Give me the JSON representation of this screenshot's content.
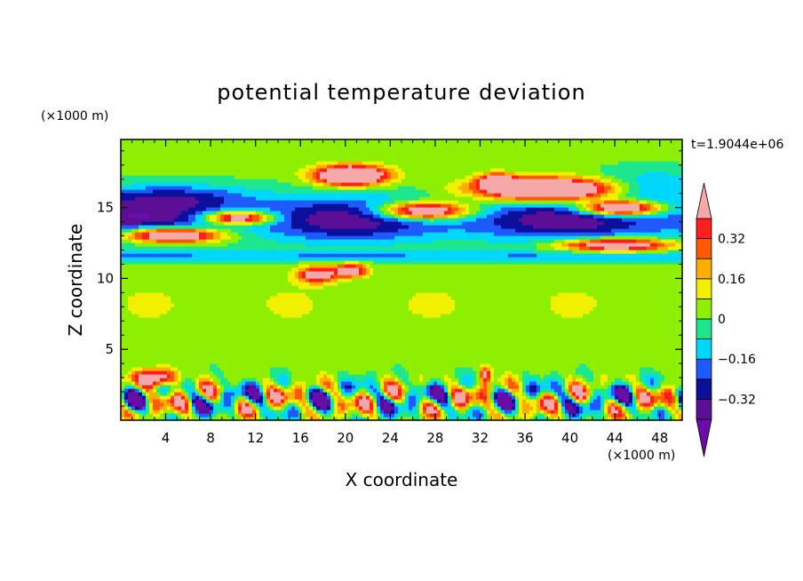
{
  "chart_data": {
    "type": "heatmap",
    "title": "potential temperature deviation",
    "time_label": "t=1.9044e+06",
    "xlabel": "X coordinate",
    "ylabel": "Z coordinate",
    "x_unit": "(×1000 m)",
    "y_unit": "(×1000 m)",
    "xlim": [
      0,
      50
    ],
    "ylim": [
      0,
      19.8
    ],
    "x_ticks": [
      4,
      8,
      12,
      16,
      20,
      24,
      28,
      32,
      36,
      40,
      44,
      48
    ],
    "y_ticks": [
      5,
      10,
      15
    ],
    "colorbar": {
      "levels": [
        -0.4,
        -0.32,
        -0.24,
        -0.16,
        -0.08,
        0,
        0.08,
        0.16,
        0.24,
        0.32,
        0.4
      ],
      "tick_values": [
        -0.32,
        -0.16,
        0,
        0.16,
        0.32
      ],
      "tick_labels": [
        "−0.32",
        "−0.16",
        "0",
        "0.16",
        "0.32"
      ],
      "colors": [
        "#5a0f96",
        "#0b0f9c",
        "#1e5bff",
        "#00d7ff",
        "#1ee68c",
        "#8ef000",
        "#f0f000",
        "#ffae00",
        "#ff5a00",
        "#ff1e1e"
      ],
      "under_color": "#6a0ca8",
      "over_color": "#f4a8a8"
    },
    "features": [
      {
        "z_range": [
          12.5,
          16.5
        ],
        "value": -0.34,
        "note": "negative band aloft"
      },
      {
        "z_range": [
          12.5,
          17.5
        ],
        "value": 0.45,
        "note": "positive lenses aloft"
      },
      {
        "z_range": [
          11.0,
          12.0
        ],
        "value": -0.14
      },
      {
        "z_range": [
          6.0,
          10.0
        ],
        "value": 0.04
      },
      {
        "z_range": [
          0.0,
          3.5
        ],
        "value": "mixed ±0.4",
        "note": "turbulent lower layer"
      }
    ]
  }
}
